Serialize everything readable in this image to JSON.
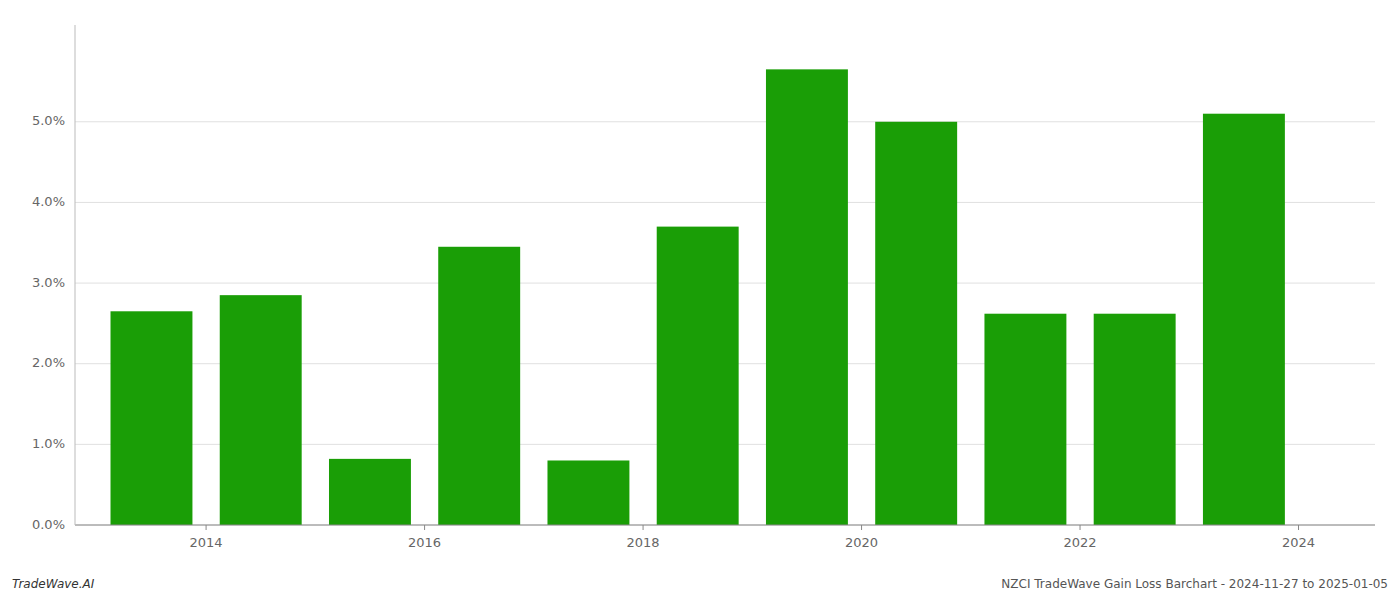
{
  "chart_data": {
    "type": "bar",
    "x": [
      2013,
      2014,
      2015,
      2016,
      2017,
      2018,
      2019,
      2020,
      2021,
      2022,
      2023
    ],
    "values": [
      2.65,
      2.85,
      0.82,
      3.45,
      0.8,
      3.7,
      5.65,
      5.0,
      2.62,
      2.62,
      5.1
    ],
    "color": "#1a9e06",
    "xlim": [
      2012.8,
      2024.7
    ],
    "xticks": [
      2014,
      2016,
      2018,
      2020,
      2022,
      2024
    ],
    "ylim": [
      0,
      6.2
    ],
    "yticks": [
      {
        "value": 0.0,
        "label": "0.0%"
      },
      {
        "value": 1.0,
        "label": "1.0%"
      },
      {
        "value": 2.0,
        "label": "2.0%"
      },
      {
        "value": 3.0,
        "label": "3.0%"
      },
      {
        "value": 4.0,
        "label": "4.0%"
      },
      {
        "value": 5.0,
        "label": "5.0%"
      }
    ],
    "grid": true,
    "annotations": [
      "TradeWave.AI",
      "NZCI TradeWave Gain Loss Barchart - 2024-11-27 to 2025-01-05"
    ]
  }
}
